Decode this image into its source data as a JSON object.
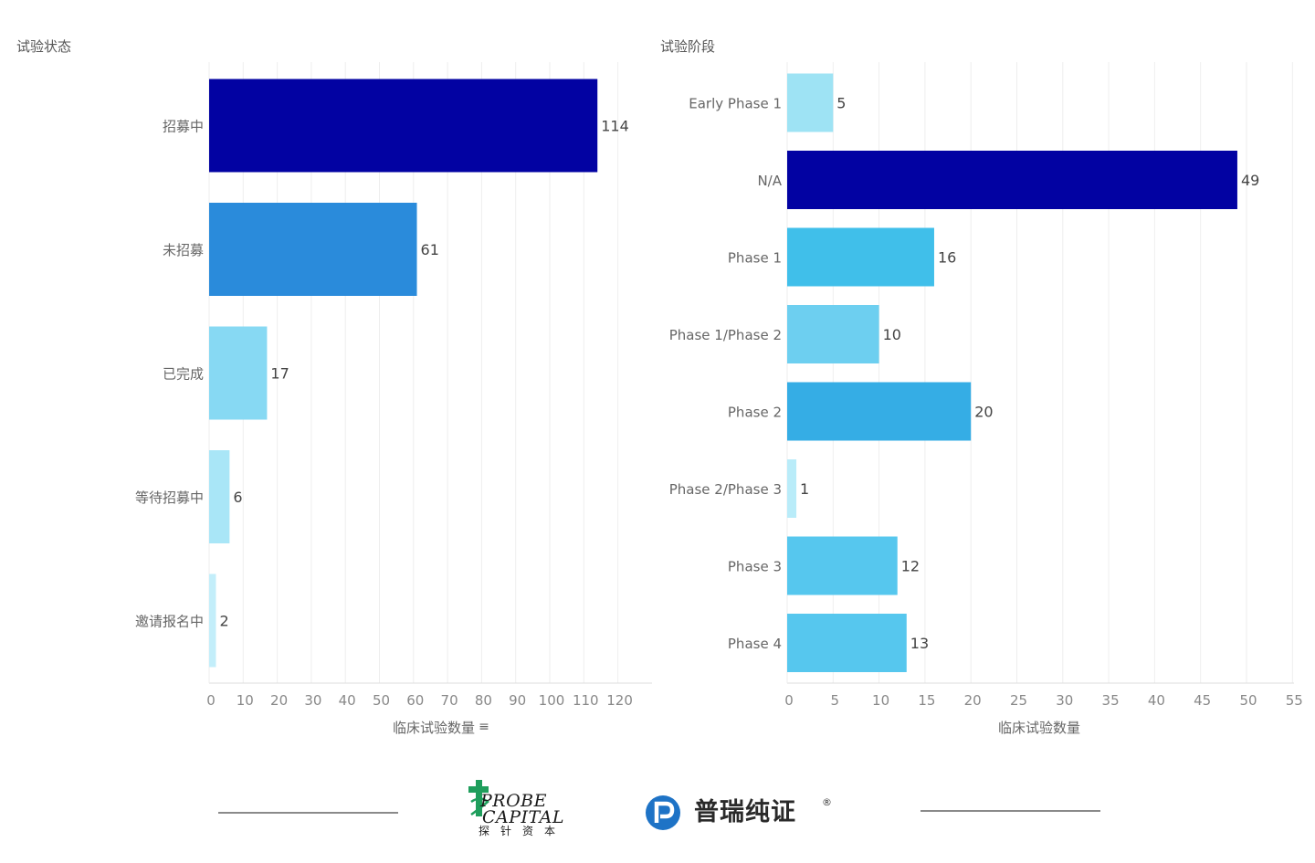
{
  "chart_data": [
    {
      "type": "bar",
      "orientation": "horizontal",
      "title": "试验状态",
      "xlabel": "临床试验数量",
      "categories": [
        "招募中",
        "未招募",
        "已完成",
        "等待招募中",
        "邀请报名中"
      ],
      "values": [
        114,
        61,
        17,
        6,
        2
      ],
      "colors": [
        "#0202a2",
        "#2a8bdb",
        "#87d9f3",
        "#a9e6f7",
        "#c3eefa"
      ],
      "xlim": [
        0,
        130
      ],
      "xticks": [
        0,
        10,
        20,
        30,
        40,
        50,
        60,
        70,
        80,
        90,
        100,
        110,
        120
      ],
      "grid": true,
      "legend": "none"
    },
    {
      "type": "bar",
      "orientation": "horizontal",
      "title": "试验阶段",
      "xlabel": "临床试验数量",
      "categories": [
        "Early Phase 1",
        "N/A",
        "Phase 1",
        "Phase 1/Phase 2",
        "Phase 2",
        "Phase 2/Phase 3",
        "Phase 3",
        "Phase 4"
      ],
      "values": [
        5,
        49,
        16,
        10,
        20,
        1,
        12,
        13
      ],
      "colors": [
        "#9ee3f4",
        "#0202a2",
        "#40bfea",
        "#6dcff0",
        "#35ade5",
        "#b9ecf9",
        "#56c7ee",
        "#56c7ee"
      ],
      "xlim": [
        0,
        55
      ],
      "xticks": [
        0,
        5,
        10,
        15,
        20,
        25,
        30,
        35,
        40,
        45,
        50,
        55
      ],
      "grid": true,
      "legend": "none"
    }
  ],
  "sort_indicator": "≡",
  "footer": {
    "probe_logo": {
      "word_line1": "ROBE",
      "word_line1_initial": "P",
      "word_line2": "CAPITAL",
      "chinese": "探针资本",
      "green": "#1f9e5c"
    },
    "purui_logo": {
      "text": "普瑞纯证",
      "registered": "®",
      "blue": "#1e73c6"
    }
  }
}
